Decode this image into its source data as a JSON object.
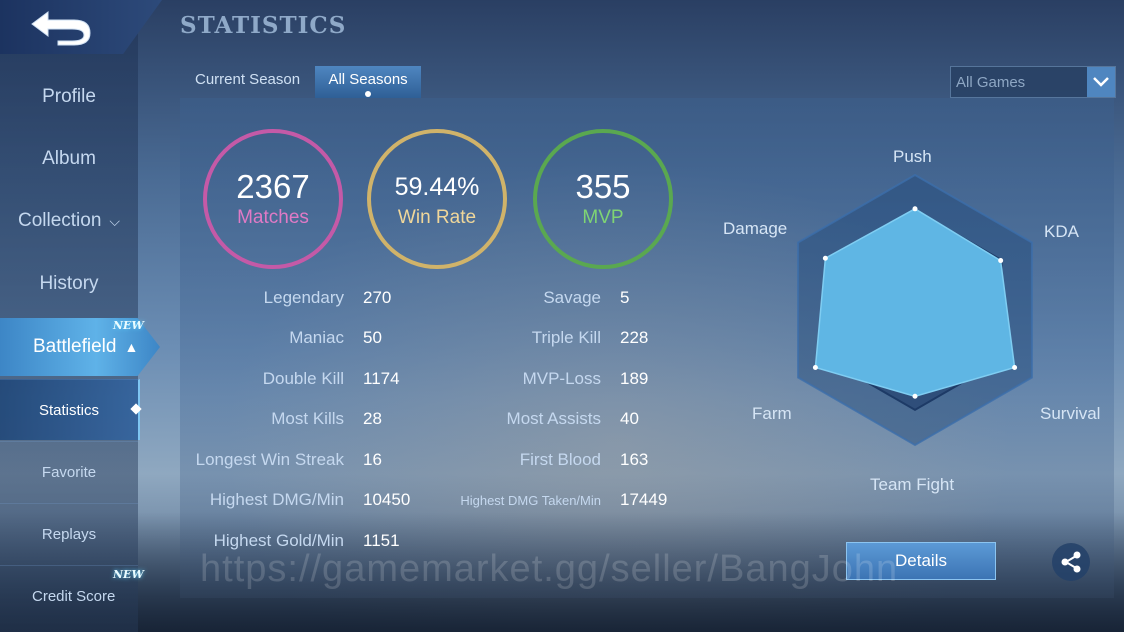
{
  "header": {
    "title": "STATISTICS"
  },
  "sidebar": {
    "items": [
      {
        "label": "Profile"
      },
      {
        "label": "Album"
      },
      {
        "label": "Collection"
      },
      {
        "label": "History"
      },
      {
        "label": "Battlefield",
        "badge": "NEW"
      }
    ],
    "sub_items": [
      {
        "label": "Statistics"
      },
      {
        "label": "Favorite"
      },
      {
        "label": "Replays"
      },
      {
        "label": "Credit Score",
        "badge": "NEW"
      }
    ]
  },
  "tabs": [
    {
      "label": "Current Season"
    },
    {
      "label": "All Seasons"
    }
  ],
  "filter": {
    "selected": "All Games"
  },
  "highlights": [
    {
      "value": "2367",
      "label": "Matches",
      "color": "#c45aa7"
    },
    {
      "value": "59.44%",
      "label": "Win Rate",
      "color": "#d0b36a"
    },
    {
      "value": "355",
      "label": "MVP",
      "color": "#5aa850"
    }
  ],
  "stats_left": [
    {
      "label": "Legendary",
      "value": "270"
    },
    {
      "label": "Maniac",
      "value": "50"
    },
    {
      "label": "Double Kill",
      "value": "1174"
    },
    {
      "label": "Most Kills",
      "value": "28"
    },
    {
      "label": "Longest Win Streak",
      "value": "16"
    },
    {
      "label": "Highest DMG/Min",
      "value": "10450"
    },
    {
      "label": "Highest Gold/Min",
      "value": "1151"
    }
  ],
  "stats_right": [
    {
      "label": "Savage",
      "value": "5"
    },
    {
      "label": "Triple Kill",
      "value": "228"
    },
    {
      "label": "MVP-Loss",
      "value": "189"
    },
    {
      "label": "Most Assists",
      "value": "40"
    },
    {
      "label": "First Blood",
      "value": "163"
    },
    {
      "label": "Highest DMG Taken/Min",
      "value": "17449"
    }
  ],
  "radar": {
    "axes": [
      "Push",
      "KDA",
      "Survival",
      "Team Fight",
      "Farm",
      "Damage"
    ],
    "values": [
      0.88,
      0.86,
      1.0,
      0.75,
      1.0,
      0.9
    ],
    "fill_color": "#5fb6e4"
  },
  "buttons": {
    "details": "Details"
  },
  "icons": {
    "back": "back-arrow-icon",
    "share": "share-icon",
    "dropdown": "chevron-down-icon"
  },
  "watermark": "https://gamemarket.gg/seller/BangJohn"
}
